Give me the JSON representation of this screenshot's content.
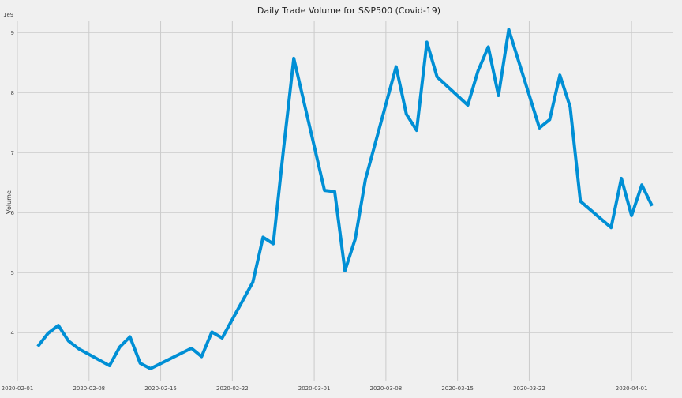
{
  "chart_data": {
    "type": "line",
    "title": "Daily Trade Volume for S&P500 (Covid-19)",
    "xlabel": "",
    "ylabel": "Volume",
    "y_scale_label": "1e9",
    "grid": true,
    "line_color": "#008fd5",
    "background_color": "#f0f0f0",
    "xlim": [
      "2020-02-01",
      "2020-04-05"
    ],
    "ylim": [
      3.2,
      9.2
    ],
    "x_ticks": [
      "2020-02-01",
      "2020-02-08",
      "2020-02-15",
      "2020-02-22",
      "2020-03-01",
      "2020-03-08",
      "2020-03-15",
      "2020-03-22",
      "2020-04-01"
    ],
    "y_ticks": [
      4,
      5,
      6,
      7,
      8,
      9
    ],
    "series": [
      {
        "x": [
          "2020-02-03",
          "2020-02-04",
          "2020-02-05",
          "2020-02-06",
          "2020-02-07",
          "2020-02-10",
          "2020-02-11",
          "2020-02-12",
          "2020-02-13",
          "2020-02-14",
          "2020-02-18",
          "2020-02-19",
          "2020-02-20",
          "2020-02-21",
          "2020-02-24",
          "2020-02-25",
          "2020-02-26",
          "2020-02-27",
          "2020-02-28",
          "2020-03-02",
          "2020-03-03",
          "2020-03-04",
          "2020-03-05",
          "2020-03-06",
          "2020-03-09",
          "2020-03-10",
          "2020-03-11",
          "2020-03-12",
          "2020-03-13",
          "2020-03-16",
          "2020-03-17",
          "2020-03-18",
          "2020-03-19",
          "2020-03-20",
          "2020-03-23",
          "2020-03-24",
          "2020-03-25",
          "2020-03-26",
          "2020-03-27",
          "2020-03-30",
          "2020-03-31",
          "2020-04-01",
          "2020-04-02",
          "2020-04-03"
        ],
        "y": [
          3.77,
          3.99,
          4.12,
          3.86,
          3.73,
          3.45,
          3.76,
          3.93,
          3.49,
          3.4,
          3.74,
          3.6,
          4.01,
          3.91,
          4.84,
          5.59,
          5.48,
          7.06,
          8.57,
          6.37,
          6.35,
          5.03,
          5.56,
          6.55,
          8.43,
          7.64,
          7.37,
          8.84,
          8.26,
          7.79,
          8.36,
          8.76,
          7.95,
          9.05,
          7.41,
          7.55,
          8.29,
          7.76,
          6.19,
          5.75,
          6.57,
          5.95,
          6.46,
          6.11
        ]
      }
    ]
  }
}
